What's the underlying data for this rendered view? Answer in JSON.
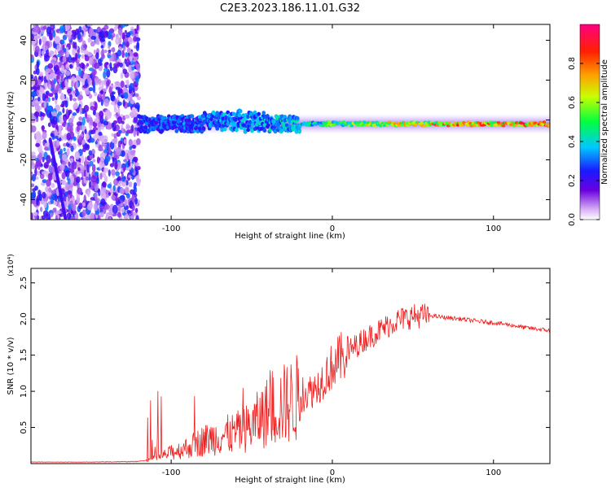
{
  "title": "C2E3.2023.186.11.01.G32",
  "chart_data": [
    {
      "type": "heatmap",
      "xlabel": "Height of straight line (km)",
      "ylabel": "Frequency (Hz)",
      "xlim": [
        -187,
        135
      ],
      "ylim": [
        -50,
        48
      ],
      "xticks": [
        -100,
        0,
        100
      ],
      "yticks": [
        -40,
        -20,
        0,
        20,
        40
      ],
      "grid": false,
      "colorbar": {
        "label": "Normalized spectral amplitude",
        "range": [
          0,
          1
        ],
        "ticks": [
          0.0,
          0.2,
          0.4,
          0.6,
          0.8
        ],
        "colormap": "rainbow (purple-blue-cyan-green-yellow-red-magenta)"
      },
      "features": {
        "noise_region_x": [
          -187,
          -120
        ],
        "carrier_frequency_hz": -2,
        "carrier_strength_profile": [
          {
            "x": -120,
            "amplitude": 0.3
          },
          {
            "x": -20,
            "amplitude": 0.45
          },
          {
            "x": 0,
            "amplitude": 0.6
          },
          {
            "x": 60,
            "amplitude": 0.8
          },
          {
            "x": 135,
            "amplitude": 0.95
          }
        ]
      }
    },
    {
      "type": "line",
      "xlabel": "Height of straight line (km)",
      "ylabel": "SNR (10 * v/v)",
      "yscale_label": "(x10⁴)",
      "xlim": [
        -187,
        135
      ],
      "ylim": [
        0,
        2.7
      ],
      "xticks": [
        -100,
        0,
        100
      ],
      "yticks": [
        0.5,
        1.0,
        1.5,
        2.0,
        2.5
      ],
      "grid": false,
      "color": "#ee2222",
      "series": [
        {
          "x": [
            -187,
            -150,
            -120,
            -110,
            -100,
            -90,
            -80,
            -70,
            -60,
            -50,
            -40,
            -30,
            -20,
            -10,
            0,
            10,
            20,
            30,
            40,
            50,
            60,
            70,
            80,
            90,
            100,
            110,
            120,
            135
          ],
          "y": [
            0.02,
            0.02,
            0.03,
            0.07,
            0.15,
            0.22,
            0.32,
            0.38,
            0.42,
            0.52,
            0.72,
            0.82,
            0.92,
            1.05,
            1.35,
            1.55,
            1.72,
            1.85,
            1.98,
            2.04,
            2.05,
            2.02,
            2.0,
            1.97,
            1.95,
            1.92,
            1.88,
            1.84
          ]
        }
      ]
    }
  ]
}
